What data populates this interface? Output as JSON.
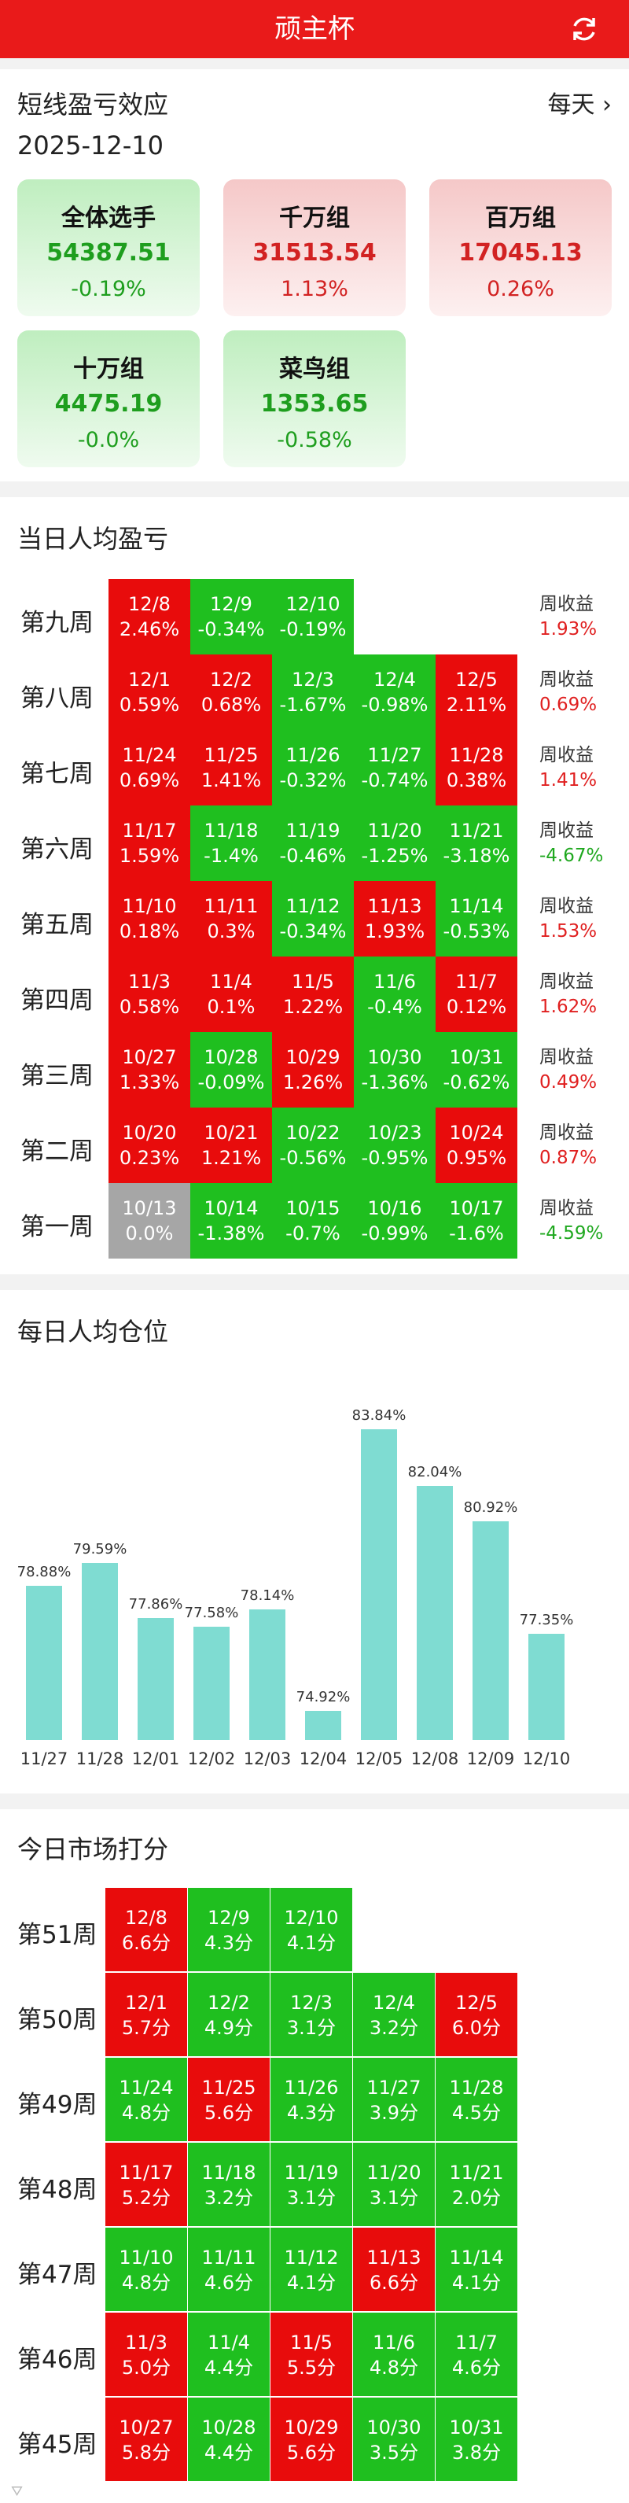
{
  "header": {
    "title": "顽主杯"
  },
  "profit": {
    "title": "短线盈亏效应",
    "date": "2025-12-10",
    "period": "每天",
    "cards": [
      {
        "name": "全体选手",
        "value": "54387.51",
        "pct": "-0.19%"
      },
      {
        "name": "千万组",
        "value": "31513.54",
        "pct": "1.13%"
      },
      {
        "name": "百万组",
        "value": "17045.13",
        "pct": "0.26%"
      },
      {
        "name": "十万组",
        "value": "4475.19",
        "pct": "-0.0%"
      },
      {
        "name": "菜鸟组",
        "value": "1353.65",
        "pct": "-0.58%"
      }
    ]
  },
  "pnl": {
    "title": "当日人均盈亏",
    "week_label": "周收益",
    "weeks": [
      {
        "label": "第九周",
        "cells": [
          [
            "12/8",
            "2.46%"
          ],
          [
            "12/9",
            "-0.34%"
          ],
          [
            "12/10",
            "-0.19%"
          ]
        ],
        "weekly": "1.93%"
      },
      {
        "label": "第八周",
        "cells": [
          [
            "12/1",
            "0.59%"
          ],
          [
            "12/2",
            "0.68%"
          ],
          [
            "12/3",
            "-1.67%"
          ],
          [
            "12/4",
            "-0.98%"
          ],
          [
            "12/5",
            "2.11%"
          ]
        ],
        "weekly": "0.69%"
      },
      {
        "label": "第七周",
        "cells": [
          [
            "11/24",
            "0.69%"
          ],
          [
            "11/25",
            "1.41%"
          ],
          [
            "11/26",
            "-0.32%"
          ],
          [
            "11/27",
            "-0.74%"
          ],
          [
            "11/28",
            "0.38%"
          ]
        ],
        "weekly": "1.41%"
      },
      {
        "label": "第六周",
        "cells": [
          [
            "11/17",
            "1.59%"
          ],
          [
            "11/18",
            "-1.4%"
          ],
          [
            "11/19",
            "-0.46%"
          ],
          [
            "11/20",
            "-1.25%"
          ],
          [
            "11/21",
            "-3.18%"
          ]
        ],
        "weekly": "-4.67%"
      },
      {
        "label": "第五周",
        "cells": [
          [
            "11/10",
            "0.18%"
          ],
          [
            "11/11",
            "0.3%"
          ],
          [
            "11/12",
            "-0.34%"
          ],
          [
            "11/13",
            "1.93%"
          ],
          [
            "11/14",
            "-0.53%"
          ]
        ],
        "weekly": "1.53%"
      },
      {
        "label": "第四周",
        "cells": [
          [
            "11/3",
            "0.58%"
          ],
          [
            "11/4",
            "0.1%"
          ],
          [
            "11/5",
            "1.22%"
          ],
          [
            "11/6",
            "-0.4%"
          ],
          [
            "11/7",
            "0.12%"
          ]
        ],
        "weekly": "1.62%"
      },
      {
        "label": "第三周",
        "cells": [
          [
            "10/27",
            "1.33%"
          ],
          [
            "10/28",
            "-0.09%"
          ],
          [
            "10/29",
            "1.26%"
          ],
          [
            "10/30",
            "-1.36%"
          ],
          [
            "10/31",
            "-0.62%"
          ]
        ],
        "weekly": "0.49%"
      },
      {
        "label": "第二周",
        "cells": [
          [
            "10/20",
            "0.23%"
          ],
          [
            "10/21",
            "1.21%"
          ],
          [
            "10/22",
            "-0.56%"
          ],
          [
            "10/23",
            "-0.95%"
          ],
          [
            "10/24",
            "0.95%"
          ]
        ],
        "weekly": "0.87%"
      },
      {
        "label": "第一周",
        "cells": [
          [
            "10/13",
            "0.0%"
          ],
          [
            "10/14",
            "-1.38%"
          ],
          [
            "10/15",
            "-0.7%"
          ],
          [
            "10/16",
            "-0.99%"
          ],
          [
            "10/17",
            "-1.6%"
          ]
        ],
        "weekly": "-4.59%"
      }
    ]
  },
  "position": {
    "title": "每日人均仓位",
    "chart_data": {
      "type": "bar",
      "categories": [
        "11/27",
        "11/28",
        "12/01",
        "12/02",
        "12/03",
        "12/04",
        "12/05",
        "12/08",
        "12/09",
        "12/10"
      ],
      "values": [
        78.88,
        79.59,
        77.86,
        77.58,
        78.14,
        74.92,
        83.84,
        82.04,
        80.92,
        77.35
      ],
      "value_labels": [
        "78.88%",
        "79.59%",
        "77.86%",
        "77.58%",
        "78.14%",
        "74.92%",
        "83.84%",
        "82.04%",
        "80.92%",
        "77.35%"
      ],
      "ylim": [
        74,
        84.5
      ],
      "color": "#7fdcd2"
    }
  },
  "score": {
    "title": "今日市场打分",
    "weeks": [
      {
        "label": "第51周",
        "cells": [
          [
            "12/8",
            "6.6分",
            "r"
          ],
          [
            "12/9",
            "4.3分",
            "g"
          ],
          [
            "12/10",
            "4.1分",
            "g"
          ]
        ]
      },
      {
        "label": "第50周",
        "cells": [
          [
            "12/1",
            "5.7分",
            "r"
          ],
          [
            "12/2",
            "4.9分",
            "g"
          ],
          [
            "12/3",
            "3.1分",
            "g"
          ],
          [
            "12/4",
            "3.2分",
            "g"
          ],
          [
            "12/5",
            "6.0分",
            "r"
          ]
        ]
      },
      {
        "label": "第49周",
        "cells": [
          [
            "11/24",
            "4.8分",
            "g"
          ],
          [
            "11/25",
            "5.6分",
            "r"
          ],
          [
            "11/26",
            "4.3分",
            "g"
          ],
          [
            "11/27",
            "3.9分",
            "g"
          ],
          [
            "11/28",
            "4.5分",
            "g"
          ]
        ]
      },
      {
        "label": "第48周",
        "cells": [
          [
            "11/17",
            "5.2分",
            "r"
          ],
          [
            "11/18",
            "3.2分",
            "g"
          ],
          [
            "11/19",
            "3.1分",
            "g"
          ],
          [
            "11/20",
            "3.1分",
            "g"
          ],
          [
            "11/21",
            "2.0分",
            "g"
          ]
        ]
      },
      {
        "label": "第47周",
        "cells": [
          [
            "11/10",
            "4.8分",
            "g"
          ],
          [
            "11/11",
            "4.6分",
            "g"
          ],
          [
            "11/12",
            "4.1分",
            "g"
          ],
          [
            "11/13",
            "6.6分",
            "r"
          ],
          [
            "11/14",
            "4.1分",
            "g"
          ]
        ]
      },
      {
        "label": "第46周",
        "cells": [
          [
            "11/3",
            "5.0分",
            "r"
          ],
          [
            "11/4",
            "4.4分",
            "g"
          ],
          [
            "11/5",
            "5.5分",
            "r"
          ],
          [
            "11/6",
            "4.8分",
            "g"
          ],
          [
            "11/7",
            "4.6分",
            "g"
          ]
        ]
      },
      {
        "label": "第45周",
        "cells": [
          [
            "10/27",
            "5.8分",
            "r"
          ],
          [
            "10/28",
            "4.4分",
            "g"
          ],
          [
            "10/29",
            "5.6分",
            "r"
          ],
          [
            "10/30",
            "3.5分",
            "g"
          ],
          [
            "10/31",
            "3.8分",
            "g"
          ]
        ]
      }
    ]
  },
  "colors": {
    "header": "#e91a1a",
    "up": "#e80c0c",
    "down": "#1fbf1f",
    "flat": "#a6a6a6"
  }
}
